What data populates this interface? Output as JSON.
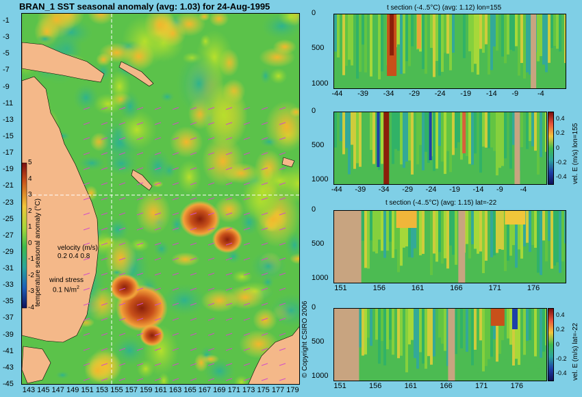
{
  "map": {
    "title": "BRAN_1  SST seasonal anomaly  (avg: 1.03)  for 24-Aug-1995",
    "y_ticks": [
      "-1",
      "-3",
      "-5",
      "-7",
      "-9",
      "-11",
      "-13",
      "-15",
      "-17",
      "-19",
      "-21",
      "-23",
      "-25",
      "-27",
      "-29",
      "-31",
      "-33",
      "-35",
      "-37",
      "-39",
      "-41",
      "-43",
      "-45"
    ],
    "x_ticks": [
      "143",
      "145",
      "147",
      "149",
      "151",
      "153",
      "155",
      "157",
      "159",
      "161",
      "163",
      "165",
      "167",
      "169",
      "171",
      "173",
      "175",
      "177",
      "179"
    ],
    "colorbar_ticks": [
      "5",
      "4",
      "3",
      "2",
      "1",
      "0",
      "-1",
      "-2",
      "-3",
      "-4"
    ],
    "colorbar_label": "temperature seasonal anomaly (°C)",
    "velocity_label": "velocity (m/s)",
    "velocity_scale": "0.2 0.4 0.8",
    "wind_label": "wind stress",
    "wind_scale": "0.1  N/m",
    "wind_scale_sup": "2",
    "copyright": "© Copyright CSIRO 2006",
    "crosshair_lon": 155,
    "crosshair_lat": -22
  },
  "colors": {
    "background": "#7fcfe6",
    "land": "#f4b889",
    "section_land": "#c8a480",
    "gridline": "#ffffff"
  },
  "chart_data": [
    {
      "type": "heatmap",
      "title": "BRAN_1  SST seasonal anomaly  (avg: 1.03)  for 24-Aug-1995",
      "xlim": [
        142,
        180
      ],
      "ylim": [
        -45,
        0
      ],
      "colorbar_range": [
        -4,
        5
      ],
      "colorbar_label": "temperature seasonal anomaly (°C)"
    },
    {
      "type": "heatmap",
      "title": "t section (-4..5°C) (avg: 1.12) lon=155",
      "x_ticks": [
        "-44",
        "-39",
        "-34",
        "-29",
        "-24",
        "-19",
        "-14",
        "-9",
        "-4"
      ],
      "y_ticks": [
        "0",
        "500",
        "1000"
      ],
      "xlim": [
        -45,
        0
      ],
      "ylim": [
        0,
        1050
      ]
    },
    {
      "type": "heatmap",
      "title": "",
      "x_ticks": [
        "-44",
        "-39",
        "-34",
        "-29",
        "-24",
        "-19",
        "-14",
        "-9",
        "-4"
      ],
      "y_ticks": [
        "0",
        "500",
        "1000"
      ],
      "colorbar_ticks": [
        "0.4",
        "0.2",
        "0",
        "-0.2",
        "-0.4"
      ],
      "colorbar_label": "vel. E (m/s) lon=155",
      "xlim": [
        -45,
        0
      ],
      "ylim": [
        0,
        1050
      ]
    },
    {
      "type": "heatmap",
      "title": "t section (-4..5°C) (avg: 1.15) lat=-22",
      "x_ticks": [
        "151",
        "156",
        "161",
        "166",
        "171",
        "176"
      ],
      "y_ticks": [
        "0",
        "500",
        "1000"
      ],
      "xlim": [
        150,
        180
      ],
      "ylim": [
        0,
        1050
      ]
    },
    {
      "type": "heatmap",
      "title": "",
      "x_ticks": [
        "151",
        "156",
        "161",
        "166",
        "171",
        "176"
      ],
      "y_ticks": [
        "0",
        "500",
        "1000"
      ],
      "colorbar_ticks": [
        "0.4",
        "0.2",
        "0",
        "-0.2",
        "-0.4"
      ],
      "colorbar_label": "vel. E (m/s) lat=-22",
      "xlim": [
        150,
        180
      ],
      "ylim": [
        0,
        1050
      ]
    }
  ]
}
